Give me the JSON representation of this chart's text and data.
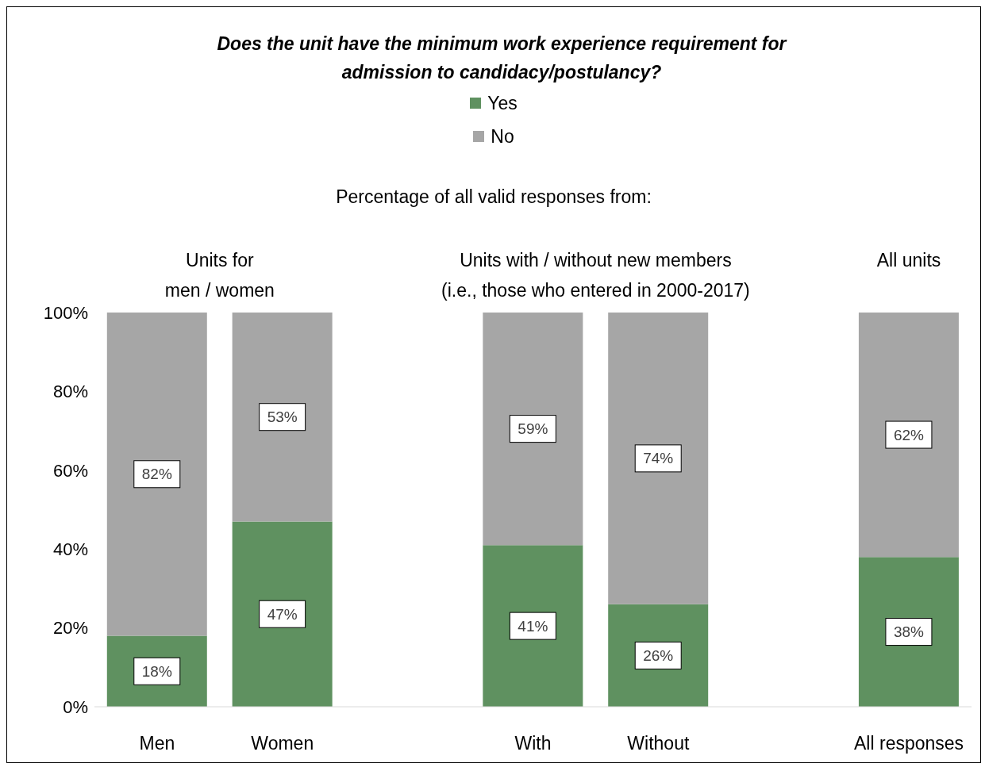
{
  "chart_data": {
    "type": "bar",
    "stacked": true,
    "title": "Does the unit have the minimum work experience requirement for admission to candidacy/postulancy?",
    "subtitle": "Percentage of all valid responses from:",
    "annotations": [
      "Units for\nmen / women",
      "Units with / without new members\n(i.e., those who entered in 2000-2017)",
      "All units"
    ],
    "categories": [
      "Men",
      "Women",
      null,
      "With",
      "Without",
      null,
      "All responses"
    ],
    "series": [
      {
        "name": "Yes",
        "color": "#5f9160",
        "values": [
          18,
          47,
          null,
          41,
          26,
          null,
          38
        ],
        "value_labels": [
          "18%",
          "47%",
          null,
          "41%",
          "26%",
          null,
          "38%"
        ]
      },
      {
        "name": "No",
        "color": "#a6a6a6",
        "values": [
          82,
          53,
          null,
          59,
          74,
          null,
          62
        ],
        "value_labels": [
          "82%",
          "53%",
          null,
          "59%",
          "74%",
          null,
          "62%"
        ]
      }
    ],
    "ylim": [
      0,
      100
    ],
    "yticks": [
      {
        "value": 0,
        "label": "0%"
      },
      {
        "value": 20,
        "label": "20%"
      },
      {
        "value": 40,
        "label": "40%"
      },
      {
        "value": 60,
        "label": "60%"
      },
      {
        "value": 80,
        "label": "80%"
      },
      {
        "value": 100,
        "label": "100%"
      }
    ],
    "grid": false,
    "legend": "top"
  }
}
